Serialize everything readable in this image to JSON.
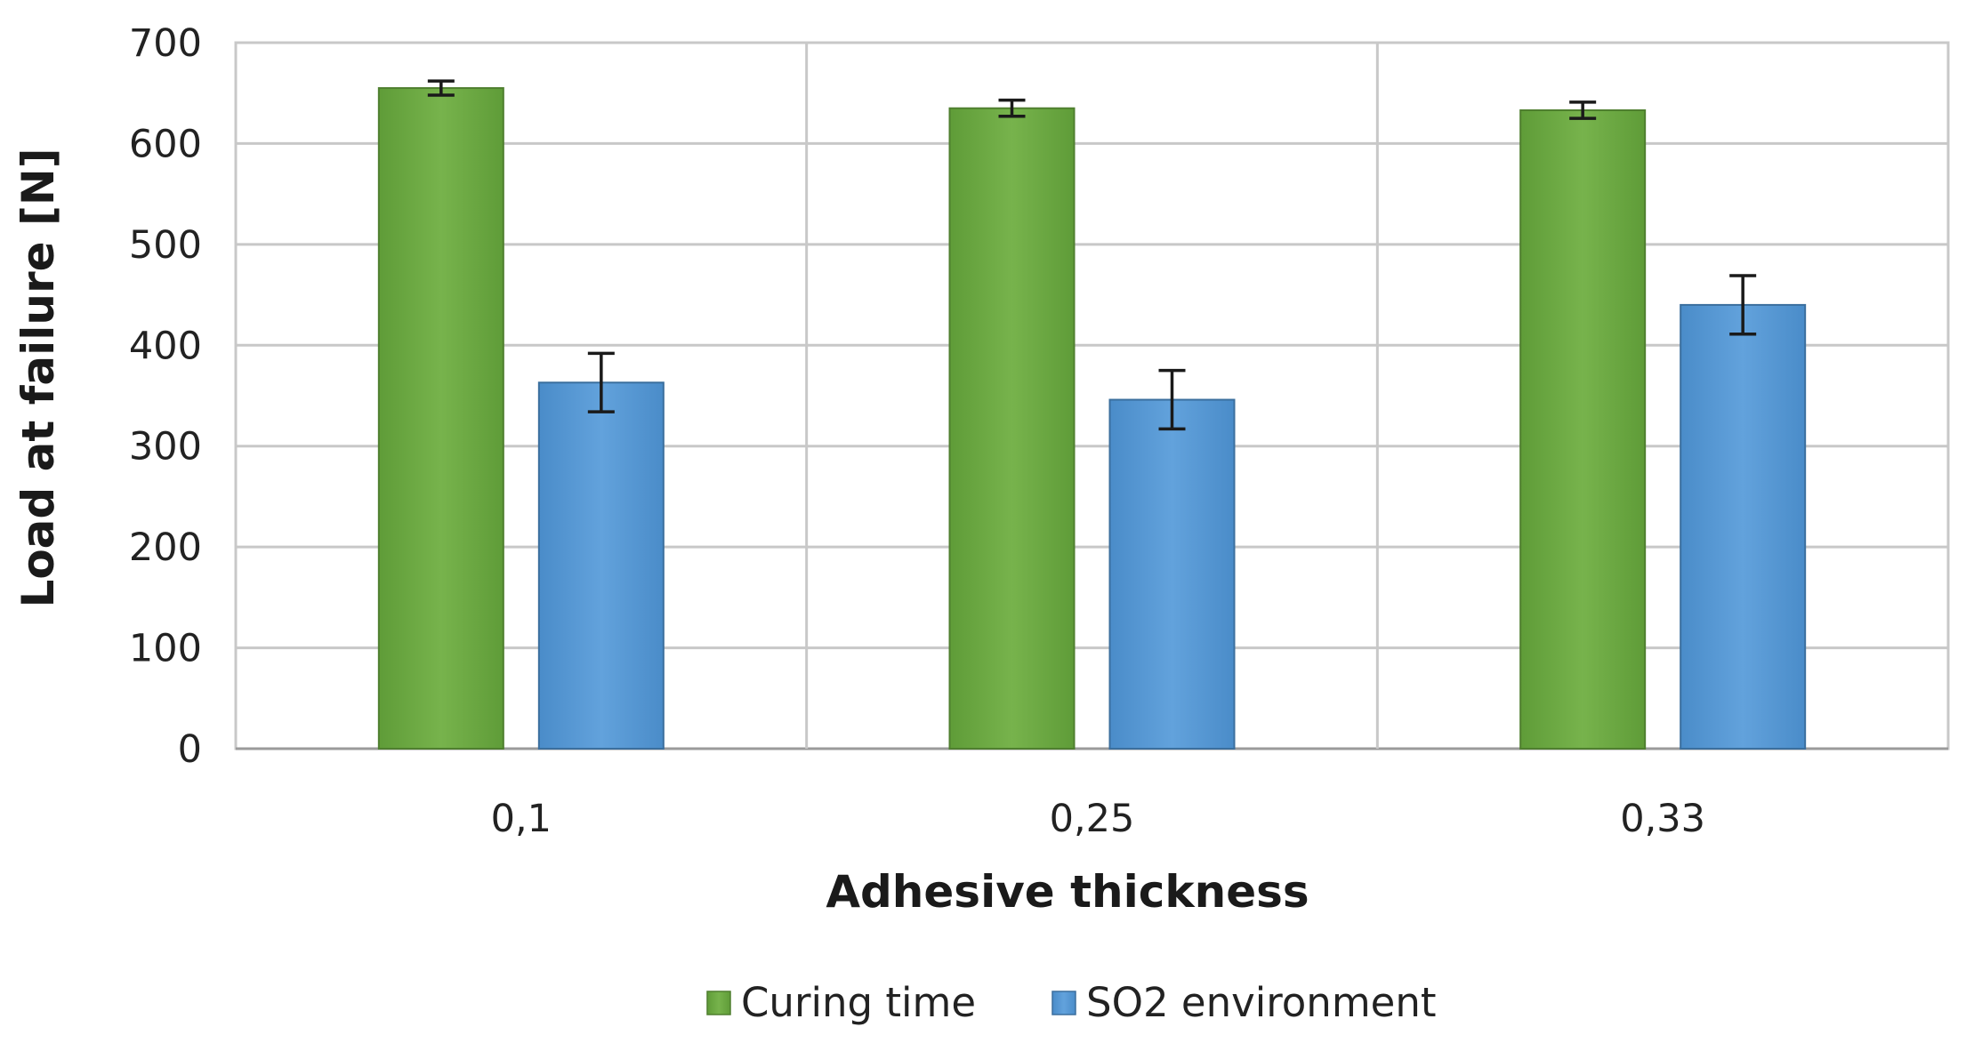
{
  "chart_data": {
    "type": "bar",
    "title": "",
    "xlabel": "Adhesive thickness",
    "ylabel": "Load at failure [N]",
    "categories": [
      "0,1",
      "0,25",
      "0,33"
    ],
    "ylim": [
      0,
      700
    ],
    "yticks": [
      0,
      100,
      200,
      300,
      400,
      500,
      600,
      700
    ],
    "grid": true,
    "legend_position": "bottom",
    "series": [
      {
        "name": "Curing time",
        "color": "#70ad47",
        "values": [
          655,
          635,
          633
        ],
        "error": [
          7,
          8,
          8
        ]
      },
      {
        "name": "SO2 environment",
        "color": "#5b9bd5",
        "values": [
          363,
          346,
          440
        ],
        "error": [
          29,
          29,
          29
        ]
      }
    ]
  }
}
